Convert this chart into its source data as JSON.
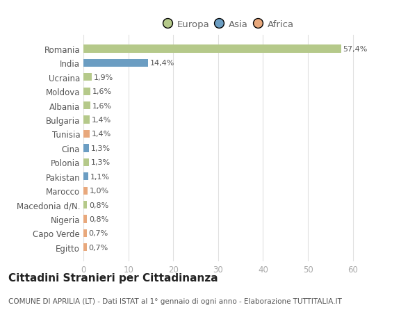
{
  "categories": [
    "Romania",
    "India",
    "Ucraina",
    "Moldova",
    "Albania",
    "Bulgaria",
    "Tunisia",
    "Cina",
    "Polonia",
    "Pakistan",
    "Marocco",
    "Macedonia d/N.",
    "Nigeria",
    "Capo Verde",
    "Egitto"
  ],
  "values": [
    57.4,
    14.4,
    1.9,
    1.6,
    1.6,
    1.4,
    1.4,
    1.3,
    1.3,
    1.1,
    1.0,
    0.8,
    0.8,
    0.7,
    0.7
  ],
  "labels": [
    "57,4%",
    "14,4%",
    "1,9%",
    "1,6%",
    "1,6%",
    "1,4%",
    "1,4%",
    "1,3%",
    "1,3%",
    "1,1%",
    "1,0%",
    "0,8%",
    "0,8%",
    "0,7%",
    "0,7%"
  ],
  "colors": [
    "#b5c98a",
    "#6b9dc2",
    "#b5c98a",
    "#b5c98a",
    "#b5c98a",
    "#b5c98a",
    "#e8a87c",
    "#6b9dc2",
    "#b5c98a",
    "#6b9dc2",
    "#e8a87c",
    "#b5c98a",
    "#e8a87c",
    "#e8a87c",
    "#e8a87c"
  ],
  "legend_labels": [
    "Europa",
    "Asia",
    "Africa"
  ],
  "legend_colors": [
    "#b5c98a",
    "#6b9dc2",
    "#e8a87c"
  ],
  "xlim": [
    0,
    65
  ],
  "xticks": [
    0,
    10,
    20,
    30,
    40,
    50,
    60
  ],
  "title": "Cittadini Stranieri per Cittadinanza",
  "subtitle": "COMUNE DI APRILIA (LT) - Dati ISTAT al 1° gennaio di ogni anno - Elaborazione TUTTITALIA.IT",
  "bg_color": "#ffffff",
  "grid_color": "#e0e0e0",
  "bar_height": 0.55,
  "label_fontsize": 8.0,
  "ytick_fontsize": 8.5,
  "xtick_fontsize": 8.5,
  "title_fontsize": 11,
  "subtitle_fontsize": 7.5,
  "legend_fontsize": 9.5
}
